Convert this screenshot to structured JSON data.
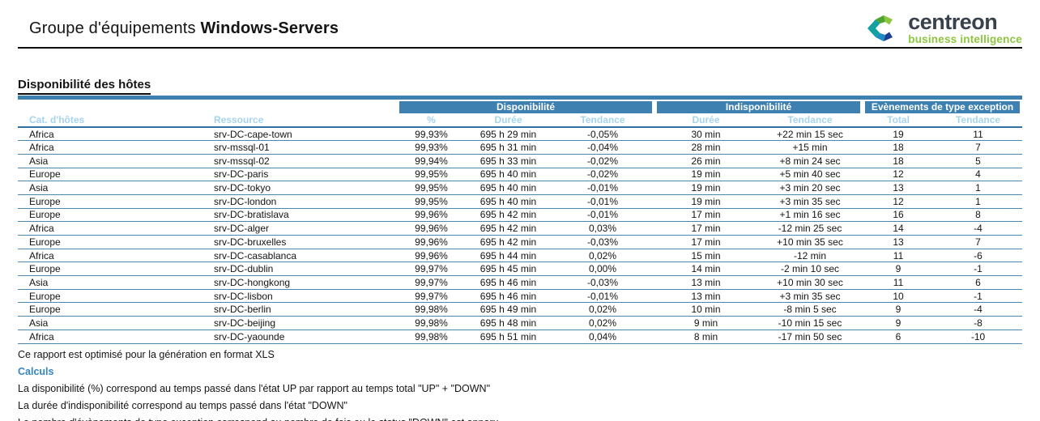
{
  "header": {
    "title_prefix": "Groupe d'équipements",
    "title_name": "Windows-Servers",
    "logo": {
      "brand": "centreon",
      "tagline": "business intelligence"
    }
  },
  "section": {
    "title": "Disponibilité des hôtes"
  },
  "table": {
    "group_headers": [
      {
        "label": "Disponibilité",
        "span": 3
      },
      {
        "label": "Indisponibilité",
        "span": 2
      },
      {
        "label": "Evènements de type exception",
        "span": 2
      }
    ],
    "columns": [
      "Cat. d'hôtes",
      "Ressource",
      "%",
      "Durée",
      "Tendance",
      "Durée",
      "Tendance",
      "Total",
      "Tendance"
    ],
    "column_keys": [
      "host-category",
      "resource",
      "availability-pct",
      "availability-duration",
      "availability-trend",
      "unavailability-duration",
      "unavailability-trend",
      "exception-total",
      "exception-trend"
    ],
    "rows": [
      [
        "Africa",
        "srv-DC-cape-town",
        "99,93%",
        "695 h 29 min",
        "-0,05%",
        "30 min",
        "+22 min 15 sec",
        "19",
        "11"
      ],
      [
        "Africa",
        "srv-mssql-01",
        "99,93%",
        "695 h 31 min",
        "-0,04%",
        "28 min",
        "+15 min",
        "18",
        "7"
      ],
      [
        "Asia",
        "srv-mssql-02",
        "99,94%",
        "695 h 33 min",
        "-0,02%",
        "26 min",
        "+8 min 24 sec",
        "18",
        "5"
      ],
      [
        "Europe",
        "srv-DC-paris",
        "99,95%",
        "695 h 40 min",
        "-0,02%",
        "19 min",
        "+5 min 40 sec",
        "12",
        "4"
      ],
      [
        "Asia",
        "srv-DC-tokyo",
        "99,95%",
        "695 h 40 min",
        "-0,01%",
        "19 min",
        "+3 min 20 sec",
        "13",
        "1"
      ],
      [
        "Europe",
        "srv-DC-london",
        "99,95%",
        "695 h 40 min",
        "-0,01%",
        "19 min",
        "+3 min 35 sec",
        "12",
        "1"
      ],
      [
        "Europe",
        "srv-DC-bratislava",
        "99,96%",
        "695 h 42 min",
        "-0,01%",
        "17 min",
        "+1 min 16 sec",
        "16",
        "8"
      ],
      [
        "Africa",
        "srv-DC-alger",
        "99,96%",
        "695 h 42 min",
        "0,03%",
        "17 min",
        "-12 min 25 sec",
        "14",
        "-4"
      ],
      [
        "Europe",
        "srv-DC-bruxelles",
        "99,96%",
        "695 h 42 min",
        "-0,03%",
        "17 min",
        "+10 min 35 sec",
        "13",
        "7"
      ],
      [
        "Africa",
        "srv-DC-casablanca",
        "99,96%",
        "695 h 44 min",
        "0,02%",
        "15 min",
        "-12 min",
        "11",
        "-6"
      ],
      [
        "Europe",
        "srv-DC-dublin",
        "99,97%",
        "695 h 45 min",
        "0,00%",
        "14 min",
        "-2 min 10 sec",
        "9",
        "-1"
      ],
      [
        "Asia",
        "srv-DC-hongkong",
        "99,97%",
        "695 h 46 min",
        "-0,03%",
        "13 min",
        "+10 min 30 sec",
        "11",
        "6"
      ],
      [
        "Europe",
        "srv-DC-lisbon",
        "99,97%",
        "695 h 46 min",
        "-0,01%",
        "13 min",
        "+3 min 35 sec",
        "10",
        "-1"
      ],
      [
        "Europe",
        "srv-DC-berlin",
        "99,98%",
        "695 h 49 min",
        "0,02%",
        "10 min",
        "-8 min 5 sec",
        "9",
        "-4"
      ],
      [
        "Asia",
        "srv-DC-beijing",
        "99,98%",
        "695 h 48 min",
        "0,02%",
        "9 min",
        "-10 min 15 sec",
        "9",
        "-8"
      ],
      [
        "Africa",
        "srv-DC-yaounde",
        "99,98%",
        "695 h 51 min",
        "0,04%",
        "8 min",
        "-17 min 50 sec",
        "6",
        "-10"
      ]
    ]
  },
  "footer": {
    "note": "Ce rapport est optimisé pour la génération en format XLS",
    "calc_title": "Calculs",
    "calc_lines": [
      "La disponibilité (%) correspond au temps passé dans l'état UP par rapport au temps total \"UP\" + \"DOWN\"",
      "La durée d'indisponibilité correspond au temps passé dans l'état \"DOWN\"",
      "Le nombre d'évènements de type exception correspond au nombre de fois ou le status \"DOWN\" est apparu"
    ]
  },
  "colors": {
    "accent_blue": "#3e80b0",
    "column_header_blue": "#a5d4ee",
    "row_line_blue": "#4c87b0",
    "calc_title_blue": "#3585bd",
    "brand_dark": "#37424c",
    "brand_green": "#8dc63f"
  }
}
